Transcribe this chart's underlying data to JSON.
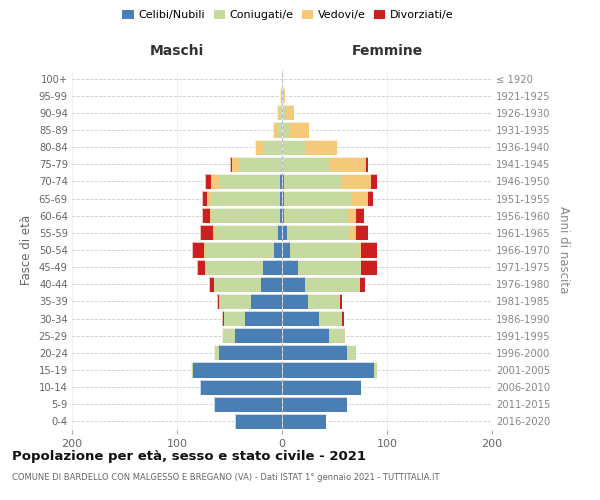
{
  "age_groups": [
    "0-4",
    "5-9",
    "10-14",
    "15-19",
    "20-24",
    "25-29",
    "30-34",
    "35-39",
    "40-44",
    "45-49",
    "50-54",
    "55-59",
    "60-64",
    "65-69",
    "70-74",
    "75-79",
    "80-84",
    "85-89",
    "90-94",
    "95-99",
    "100+"
  ],
  "birth_years": [
    "2016-2020",
    "2011-2015",
    "2006-2010",
    "2001-2005",
    "1996-2000",
    "1991-1995",
    "1986-1990",
    "1981-1985",
    "1976-1980",
    "1971-1975",
    "1966-1970",
    "1961-1965",
    "1956-1960",
    "1951-1955",
    "1946-1950",
    "1941-1945",
    "1936-1940",
    "1931-1935",
    "1926-1930",
    "1921-1925",
    "≤ 1920"
  ],
  "maschi_celibi": [
    45,
    65,
    78,
    85,
    60,
    45,
    35,
    30,
    20,
    18,
    8,
    4,
    2,
    2,
    2,
    0,
    0,
    0,
    0,
    0,
    0
  ],
  "maschi_coniugati": [
    0,
    0,
    0,
    2,
    5,
    12,
    20,
    30,
    45,
    55,
    65,
    60,
    65,
    65,
    58,
    40,
    18,
    4,
    2,
    1,
    0
  ],
  "maschi_vedovi": [
    0,
    0,
    0,
    0,
    0,
    0,
    0,
    0,
    0,
    0,
    1,
    2,
    2,
    4,
    8,
    8,
    8,
    5,
    3,
    1,
    0
  ],
  "maschi_divorziati": [
    0,
    0,
    0,
    0,
    0,
    0,
    2,
    2,
    5,
    8,
    12,
    12,
    7,
    5,
    5,
    2,
    0,
    0,
    0,
    0,
    0
  ],
  "femmine_nubili": [
    42,
    62,
    75,
    88,
    62,
    45,
    35,
    25,
    22,
    15,
    8,
    5,
    2,
    2,
    2,
    0,
    0,
    0,
    0,
    0,
    0
  ],
  "femmine_coniugate": [
    0,
    0,
    0,
    2,
    8,
    15,
    22,
    30,
    52,
    60,
    65,
    60,
    60,
    65,
    55,
    45,
    22,
    8,
    3,
    1,
    0
  ],
  "femmine_vedove": [
    0,
    0,
    0,
    0,
    0,
    0,
    0,
    0,
    0,
    0,
    2,
    5,
    8,
    15,
    28,
    35,
    30,
    18,
    8,
    2,
    0
  ],
  "femmine_divorziate": [
    0,
    0,
    0,
    0,
    0,
    0,
    2,
    2,
    5,
    15,
    15,
    12,
    8,
    5,
    5,
    2,
    0,
    0,
    0,
    0,
    0
  ],
  "color_celibi": "#4a7fb5",
  "color_coniugati": "#c5d9a0",
  "color_vedovi": "#f5c97a",
  "color_divorziati": "#cc2020",
  "xlim": 200,
  "title": "Popolazione per età, sesso e stato civile - 2021",
  "subtitle": "COMUNE DI BARDELLO CON MALGESSO E BREGANO (VA) - Dati ISTAT 1° gennaio 2021 - TUTTITALIA.IT",
  "header_left": "Maschi",
  "header_right": "Femmine",
  "ylabel_left": "Fasce di età",
  "ylabel_right": "Anni di nascita",
  "legend_labels": [
    "Celibi/Nubili",
    "Coniugati/e",
    "Vedovi/e",
    "Divorziati/e"
  ],
  "bg_color": "#ffffff",
  "grid_color": "#cccccc"
}
